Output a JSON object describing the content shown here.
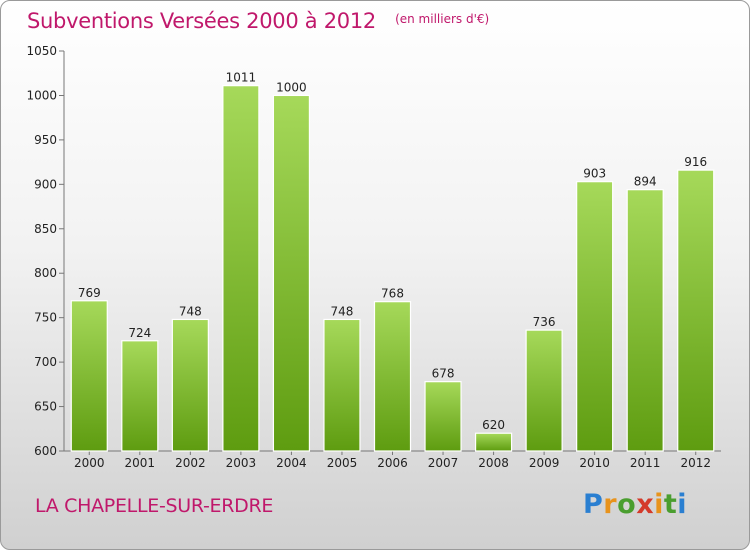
{
  "header": {
    "title": "Subventions Versées 2000 à 2012",
    "subtitle": "(en milliers d'€)"
  },
  "footer": {
    "place": "LA CHAPELLE-SUR-ERDRE",
    "logo_text": "Proxiti",
    "logo_letter_colors": [
      "#2a7fd1",
      "#e8931c",
      "#4a9e2f",
      "#d43a2a",
      "#e8931c",
      "#4a9e2f",
      "#2a7fd1"
    ]
  },
  "colors": {
    "title": "#c0186b",
    "bar_light": "#a6d95a",
    "bar_dark": "#5e9c10"
  },
  "chart_data": {
    "type": "bar",
    "categories": [
      "2000",
      "2001",
      "2002",
      "2003",
      "2004",
      "2005",
      "2006",
      "2007",
      "2008",
      "2009",
      "2010",
      "2011",
      "2012"
    ],
    "values": [
      769,
      724,
      748,
      1011,
      1000,
      748,
      768,
      678,
      620,
      736,
      903,
      894,
      916
    ],
    "ylim": [
      600,
      1050
    ],
    "yticks": [
      600,
      650,
      700,
      750,
      800,
      850,
      900,
      950,
      1000,
      1050
    ],
    "grid": false,
    "legend": "none"
  }
}
